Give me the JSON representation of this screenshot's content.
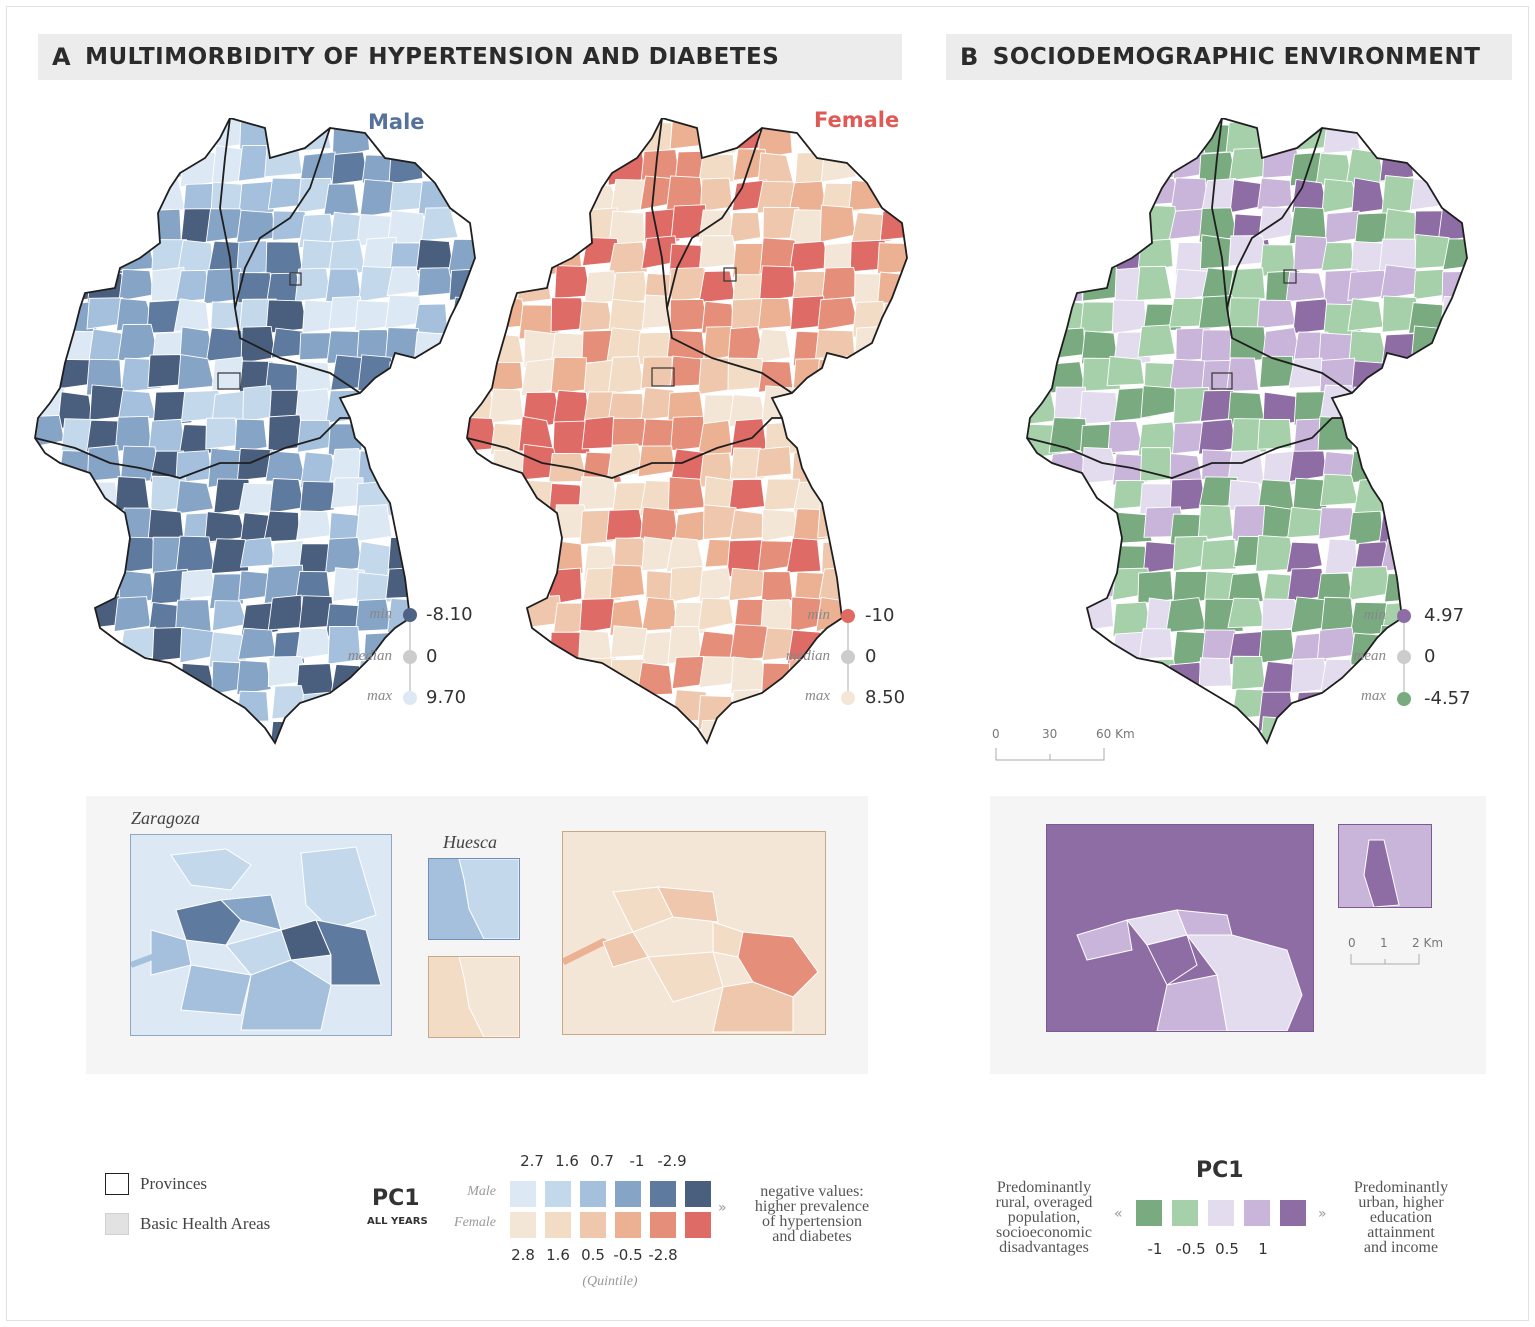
{
  "panelA": {
    "letter": "A",
    "title": "MULTIMORBIDITY OF HYPERTENSION AND DIABETES"
  },
  "panelB": {
    "letter": "B",
    "title": "SOCIODEMOGRAPHIC ENVIRONMENT"
  },
  "male_map": {
    "title": "Male",
    "title_color": "#56729a",
    "palette": [
      "#dce8f4",
      "#c4d8ec",
      "#a4c0dc",
      "#86a4c6",
      "#5e7a9e",
      "#4a5e7e"
    ],
    "legend": [
      {
        "label": "min",
        "value": "-8.10",
        "color": "#4e6285"
      },
      {
        "label": "median",
        "value": "0",
        "color": "#cccccc"
      },
      {
        "label": "max",
        "value": "9.70",
        "color": "#dce8f4"
      }
    ]
  },
  "female_map": {
    "title": "Female",
    "title_color": "#e05a55",
    "palette": [
      "#f4e6d6",
      "#f2dcc6",
      "#efc7ad",
      "#ecb193",
      "#e58e7a",
      "#df6b66"
    ],
    "legend": [
      {
        "label": "min",
        "value": "-10",
        "color": "#e06a62"
      },
      {
        "label": "median",
        "value": "0",
        "color": "#cccccc"
      },
      {
        "label": "max",
        "value": "8.50",
        "color": "#f4e6d6"
      }
    ]
  },
  "socio_map": {
    "palette": [
      "#7aab80",
      "#a6d0aa",
      "#e2dcee",
      "#c9b5d9",
      "#8e6da4"
    ],
    "legend": [
      {
        "label": "min",
        "value": "4.97",
        "color": "#8e6da4"
      },
      {
        "label": "mean",
        "value": "0",
        "color": "#cccccc"
      },
      {
        "label": "max",
        "value": "-4.57",
        "color": "#7aab80"
      }
    ],
    "scale_km": [
      "0",
      "30",
      "60 Km"
    ]
  },
  "insets_A": {
    "zaragoza_label": "Zaragoza",
    "huesca_label": "Huesca"
  },
  "insets_B": {
    "scale_km": [
      "0",
      "1",
      "2 Km"
    ]
  },
  "legend_A": {
    "provinces": "Provinces",
    "basic_health_areas": "Basic Health Areas",
    "pc1": "PC1",
    "all_years": "ALL YEARS",
    "male_label": "Male",
    "female_label": "Female",
    "male_quintiles": [
      "2.7",
      "1.6",
      "0.7",
      "-1",
      "-2.9"
    ],
    "female_quintiles": [
      "2.8",
      "1.6",
      "0.5",
      "-0.5",
      "-2.8"
    ],
    "male_colors": [
      "#dce8f4",
      "#c4d8ec",
      "#a4c0dc",
      "#86a4c6",
      "#5e7a9e",
      "#4a5e7e"
    ],
    "female_colors": [
      "#f4e6d6",
      "#f2dcc6",
      "#efc7ad",
      "#ecb193",
      "#e58e7a",
      "#df6b66"
    ],
    "quintile_note": "(Quintile)",
    "note_line1": "negative values:",
    "note_line2": "higher prevalence",
    "note_line3": "of hypertension",
    "note_line4": "and diabetes"
  },
  "legend_B": {
    "pc1": "PC1",
    "left_line1": "Predominantly",
    "left_line2": "rural, overaged",
    "left_line3": "population,",
    "left_line4": "socioeconomic",
    "left_line5": "disadvantages",
    "right_line1": "Predominantly",
    "right_line2": "urban, higher",
    "right_line3": "education",
    "right_line4": "attainment",
    "right_line5": "and income",
    "values": [
      "-1",
      "-0.5",
      "0.5",
      "1"
    ],
    "colors": [
      "#7aab80",
      "#a6d0aa",
      "#e2dcee",
      "#c9b5d9",
      "#8e6da4"
    ]
  }
}
